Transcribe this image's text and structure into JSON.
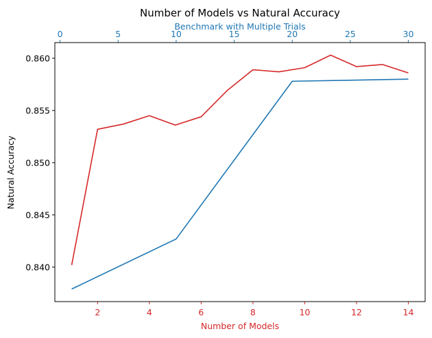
{
  "chart_data": {
    "type": "line",
    "title": "Number of Models vs Natural Accuracy",
    "ylabel": "Natural Accuracy",
    "ylim": [
      0.8367,
      0.8615
    ],
    "yticks": [
      0.84,
      0.845,
      0.85,
      0.855,
      0.86
    ],
    "ytick_labels": [
      "0.840",
      "0.845",
      "0.850",
      "0.855",
      "0.860"
    ],
    "grid": false,
    "bottom_axis": {
      "label": "Number of Models",
      "color": "#d62728",
      "lim": [
        0.35,
        14.65
      ],
      "ticks": [
        2,
        4,
        6,
        8,
        10,
        12,
        14
      ],
      "tick_labels": [
        "2",
        "4",
        "6",
        "8",
        "10",
        "12",
        "14"
      ]
    },
    "top_axis": {
      "label": "Benchmark with Multiple Trials",
      "color": "#1f77b4",
      "lim": [
        -0.45,
        31.45
      ],
      "ticks": [
        0,
        5,
        10,
        15,
        20,
        25,
        30
      ],
      "tick_labels": [
        "0",
        "5",
        "10",
        "15",
        "20",
        "25",
        "30"
      ]
    },
    "series": [
      {
        "axis": "bottom",
        "color": "#d62728",
        "x": [
          1,
          2,
          3,
          4,
          5,
          6,
          7,
          8,
          9,
          10,
          11,
          12,
          13,
          14
        ],
        "values": [
          0.8402,
          0.8532,
          0.8537,
          0.8545,
          0.8536,
          0.8544,
          0.8569,
          0.8589,
          0.8587,
          0.8591,
          0.8603,
          0.8592,
          0.8594,
          0.8586
        ]
      },
      {
        "axis": "top",
        "color": "#1f77b4",
        "x": [
          1,
          10,
          20,
          30
        ],
        "values": [
          0.8379,
          0.8427,
          0.8578,
          0.858
        ]
      }
    ]
  }
}
